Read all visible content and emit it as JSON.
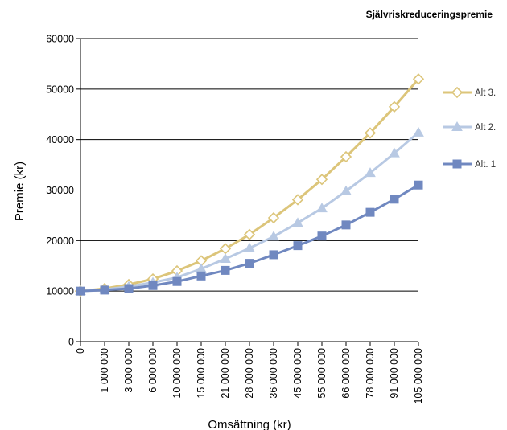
{
  "chart_data": {
    "type": "line",
    "title": "Självriskreduceringspremie",
    "xlabel": "Omsättning (kr)",
    "ylabel": "Premie (kr)",
    "ylim": [
      0,
      60000
    ],
    "y_ticks": [
      "0",
      "10000",
      "20000",
      "30000",
      "40000",
      "50000",
      "60000"
    ],
    "categories": [
      "0",
      "1 000 000",
      "3 000 000",
      "6 000 000",
      "10 000 000",
      "15 000 000",
      "21 000 000",
      "28 000 000",
      "36 000 000",
      "45 000 000",
      "55 000 000",
      "66 000 000",
      "78 000 000",
      "91 000 000",
      "105 000 000"
    ],
    "grid": "horizontal",
    "legend_position": "right",
    "series": [
      {
        "name": "Alt 3.",
        "color": "#dcc57a",
        "marker": "diamond-open",
        "values": [
          10000,
          10500,
          11300,
          12400,
          14000,
          16000,
          18400,
          21200,
          24500,
          28100,
          32100,
          36600,
          41300,
          46500,
          52000
        ]
      },
      {
        "name": "Alt 2.",
        "color": "#b8c9e3",
        "marker": "triangle",
        "values": [
          10000,
          10300,
          10900,
          11700,
          12700,
          14400,
          16400,
          18500,
          20800,
          23500,
          26400,
          29800,
          33400,
          37300,
          41400
        ]
      },
      {
        "name": "Alt. 1",
        "color": "#7088c0",
        "marker": "square",
        "values": [
          10000,
          10200,
          10500,
          11100,
          11900,
          13000,
          14100,
          15500,
          17200,
          19000,
          20900,
          23100,
          25600,
          28200,
          31000
        ]
      }
    ]
  }
}
